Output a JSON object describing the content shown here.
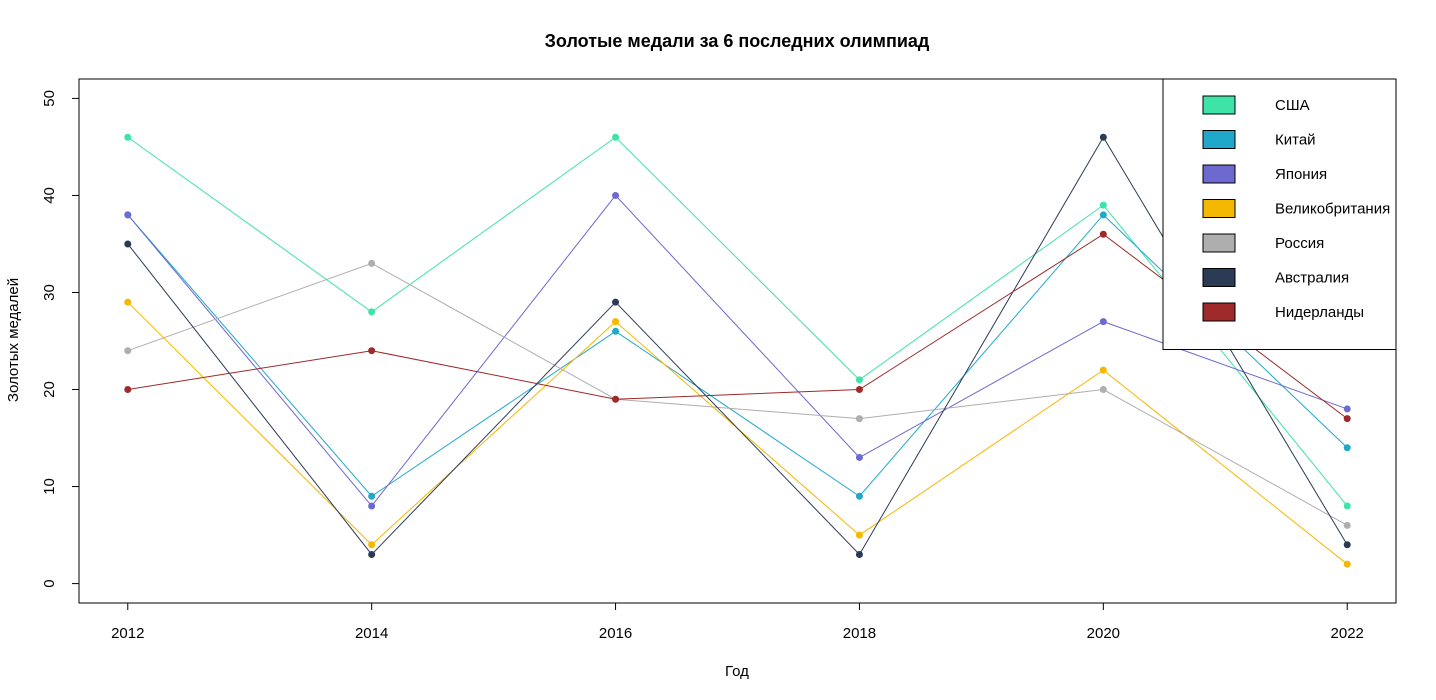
{
  "chart_data": {
    "type": "line",
    "title": "Золотые медали за 6 последних олимпиад",
    "xlabel": "Год",
    "ylabel": "Золотых медалей",
    "x": [
      2012,
      2014,
      2016,
      2018,
      2020,
      2022
    ],
    "x_ticks": [
      "2012",
      "2014",
      "2016",
      "2018",
      "2020",
      "2022"
    ],
    "y_ticks": [
      "0",
      "10",
      "20",
      "30",
      "40",
      "50"
    ],
    "xlim": [
      2011.6,
      2022.4
    ],
    "ylim": [
      -2,
      52
    ],
    "grid": false,
    "legend_position": "top-right",
    "series": [
      {
        "name": "США",
        "color": "#3de3a7",
        "values": [
          46,
          28,
          46,
          21,
          39,
          8
        ]
      },
      {
        "name": "Китай",
        "color": "#1fa8c9",
        "values": [
          38,
          9,
          26,
          9,
          38,
          14
        ]
      },
      {
        "name": "Япония",
        "color": "#6c69cf",
        "values": [
          38,
          8,
          40,
          13,
          27,
          18
        ]
      },
      {
        "name": "Великобритания",
        "color": "#f5b800",
        "values": [
          29,
          4,
          27,
          5,
          22,
          2
        ]
      },
      {
        "name": "Россия",
        "color": "#aeaeae",
        "values": [
          24,
          33,
          19,
          17,
          20,
          6
        ]
      },
      {
        "name": "Австралия",
        "color": "#2b3a55",
        "values": [
          35,
          3,
          29,
          3,
          46,
          4
        ]
      },
      {
        "name": "Нидерланды",
        "color": "#9e2a2b",
        "values": [
          20,
          24,
          19,
          20,
          36,
          17
        ]
      }
    ]
  }
}
